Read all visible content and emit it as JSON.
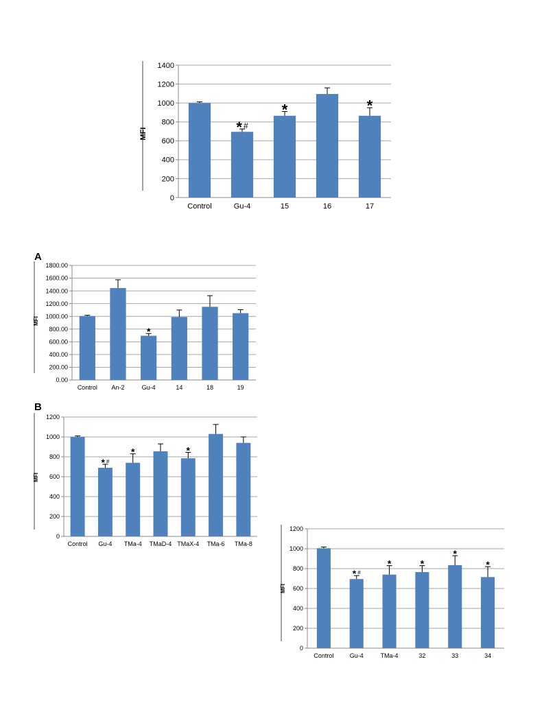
{
  "bar_color": "#4f81bd",
  "chart_data": [
    {
      "type": "bar",
      "panel_letter": "",
      "categories": [
        "Control",
        "Gu-4",
        "15",
        "16",
        "17"
      ],
      "values": [
        1000,
        695,
        865,
        1095,
        865
      ],
      "errors": [
        12,
        30,
        45,
        65,
        85
      ],
      "significance": [
        "",
        "*#",
        "*",
        "",
        "*"
      ],
      "ylabel": "MFI",
      "ylim": [
        0,
        1400
      ],
      "yticks": [
        0,
        200,
        400,
        600,
        800,
        1000,
        1200,
        1400
      ],
      "ytick_labels": [
        "0",
        "200",
        "400",
        "600",
        "800",
        "1000",
        "1200",
        "1400"
      ],
      "grid": true
    },
    {
      "type": "bar",
      "panel_letter": "A",
      "categories": [
        "Control",
        "An-2",
        "Gu-4",
        "14",
        "18",
        "19"
      ],
      "values": [
        1005,
        1445,
        695,
        990,
        1150,
        1050
      ],
      "errors": [
        12,
        130,
        35,
        110,
        175,
        55
      ],
      "significance": [
        "",
        "",
        "*",
        "",
        "",
        ""
      ],
      "ylabel": "MFI",
      "ylim": [
        0,
        1800
      ],
      "yticks": [
        0,
        200,
        400,
        600,
        800,
        1000,
        1200,
        1400,
        1600,
        1800
      ],
      "ytick_labels": [
        "0.00",
        "200.00",
        "400.00",
        "600.00",
        "800.00",
        "1000.00",
        "1200.00",
        "1400.00",
        "1600.00",
        "1800.00"
      ],
      "grid": true
    },
    {
      "type": "bar",
      "panel_letter": "B",
      "categories": [
        "Control",
        "Gu-4",
        "TMa-4",
        "TMaD-4",
        "TMaX-4",
        "TMa-6",
        "TMa-8"
      ],
      "values": [
        1000,
        690,
        740,
        855,
        785,
        1030,
        940
      ],
      "errors": [
        10,
        35,
        90,
        75,
        60,
        95,
        60
      ],
      "significance": [
        "",
        "*#",
        "*",
        "",
        "*",
        "",
        ""
      ],
      "ylabel": "MFI",
      "ylim": [
        0,
        1200
      ],
      "yticks": [
        0,
        200,
        400,
        600,
        800,
        1000,
        1200
      ],
      "ytick_labels": [
        "0",
        "200",
        "400",
        "600",
        "800",
        "1000",
        "1200"
      ],
      "grid": true
    },
    {
      "type": "bar",
      "panel_letter": "",
      "categories": [
        "Control",
        "Gu-4",
        "TMa-4",
        "32",
        "33",
        "34"
      ],
      "values": [
        1005,
        695,
        740,
        765,
        835,
        715
      ],
      "errors": [
        12,
        35,
        90,
        65,
        95,
        105
      ],
      "significance": [
        "",
        "*#",
        "*",
        "*",
        "*",
        "*"
      ],
      "ylabel": "MFI",
      "ylim": [
        0,
        1200
      ],
      "yticks": [
        0,
        200,
        400,
        600,
        800,
        1000,
        1200
      ],
      "ytick_labels": [
        "0",
        "200",
        "400",
        "600",
        "800",
        "1000",
        "1200"
      ],
      "grid": true
    }
  ]
}
